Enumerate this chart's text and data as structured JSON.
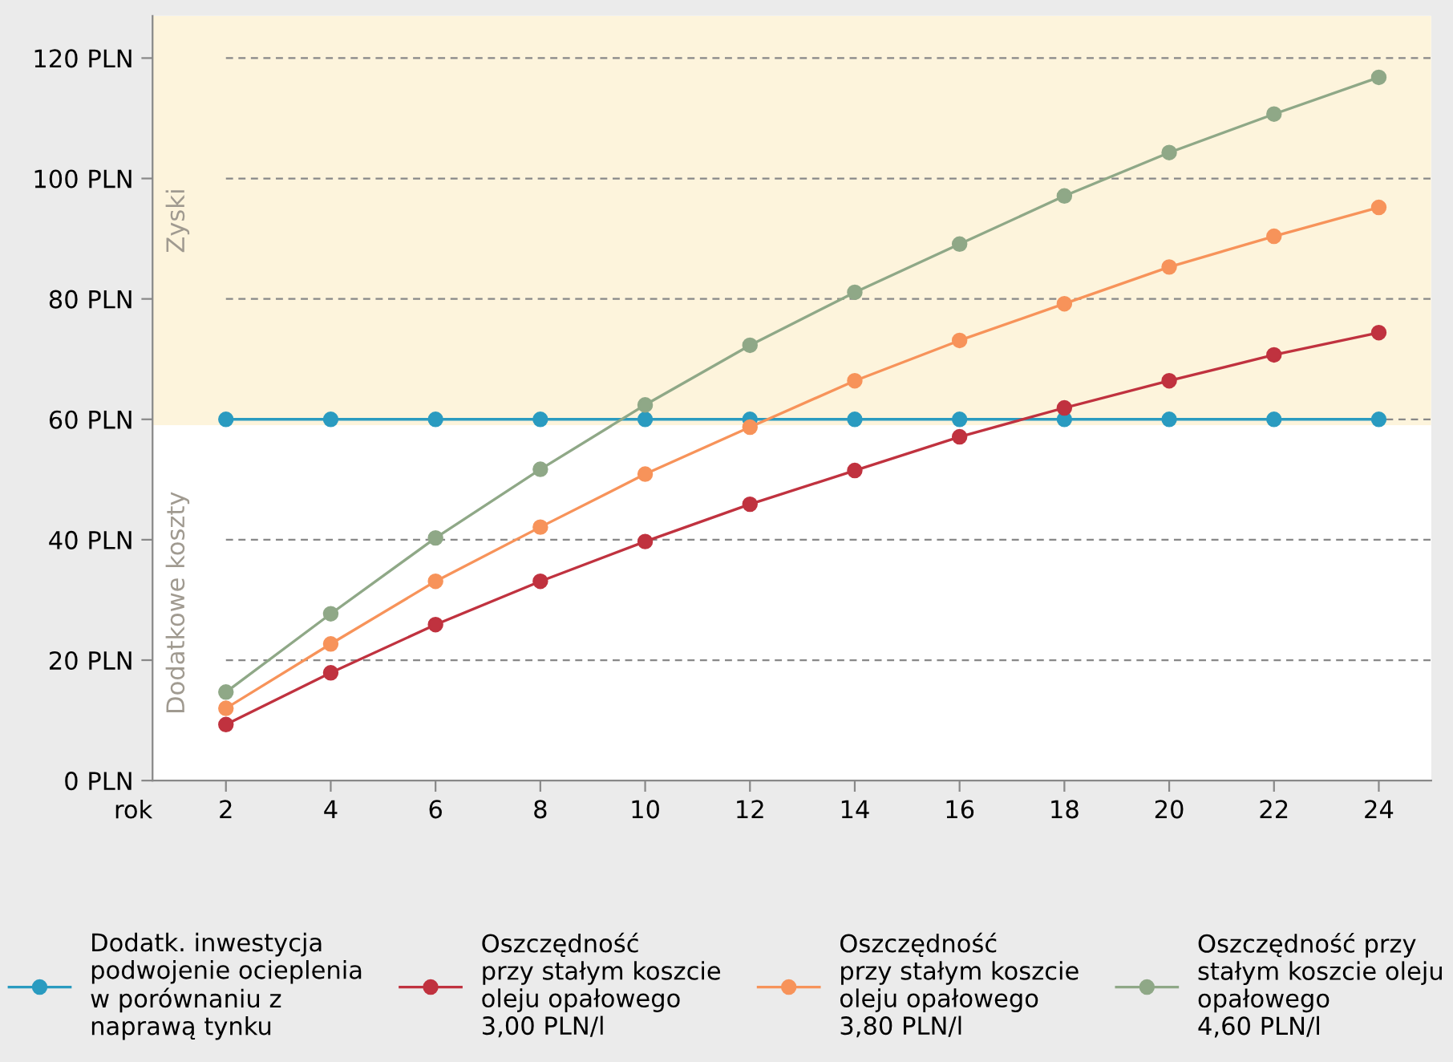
{
  "chart_data": {
    "type": "line",
    "xlabel": "rok",
    "x": [
      2,
      4,
      6,
      8,
      10,
      12,
      14,
      16,
      18,
      20,
      22,
      24
    ],
    "series": [
      {
        "name": "Dodatk. inwestycja\npodwojenie ocieplenia\nw porównaniu z\nnaprawą tynku",
        "color": "#2a9bc0",
        "values": [
          60,
          60,
          60,
          60,
          60,
          60,
          60,
          60,
          60,
          60,
          60,
          60
        ]
      },
      {
        "name": "Oszczędność\nprzy stałym koszcie\noleju opałowego\n3,00 PLN/l",
        "color": "#c0323f",
        "values": [
          9.3,
          17.9,
          25.9,
          33.1,
          39.7,
          45.9,
          51.5,
          57.1,
          61.9,
          66.4,
          70.7,
          74.4
        ]
      },
      {
        "name": "Oszczędność\nprzy stałym koszcie\noleju opałowego\n3,80 PLN/l",
        "color": "#f7935a",
        "values": [
          12,
          22.7,
          33.1,
          42.1,
          50.9,
          58.7,
          66.4,
          73.1,
          79.2,
          85.3,
          90.4,
          95.2
        ]
      },
      {
        "name": "Oszczędność przy\nstałym koszcie oleju\nopałowego\n4,60 PLN/l",
        "color": "#8fa887",
        "values": [
          14.7,
          27.7,
          40.3,
          51.7,
          62.4,
          72.3,
          81.1,
          89.1,
          97.1,
          104.3,
          110.7,
          116.8
        ]
      }
    ],
    "xlim": [
      0.6,
      25
    ],
    "xticks": [
      2,
      4,
      6,
      8,
      10,
      12,
      14,
      16,
      18,
      20,
      22,
      24
    ],
    "ylim": [
      0,
      127
    ],
    "yticks": [
      {
        "value": 0,
        "label": "0 PLN"
      },
      {
        "value": 20,
        "label": "20 PLN"
      },
      {
        "value": 40,
        "label": "40 PLN"
      },
      {
        "value": 60,
        "label": "60 PLN"
      },
      {
        "value": 80,
        "label": "80 PLN"
      },
      {
        "value": 100,
        "label": "100 PLN"
      },
      {
        "value": 120,
        "label": "120 PLN"
      }
    ],
    "bands": [
      {
        "axis": "y",
        "from": 59,
        "to": 127,
        "label": "Zyski",
        "color": "#fdf4dc"
      },
      {
        "axis": "y",
        "from": 0,
        "to": 59,
        "label": "Dodatkowe koszty",
        "color": "#ffffff"
      }
    ],
    "grid": "y",
    "legend": "bottom",
    "marker": "circle",
    "line_style": "solid"
  }
}
